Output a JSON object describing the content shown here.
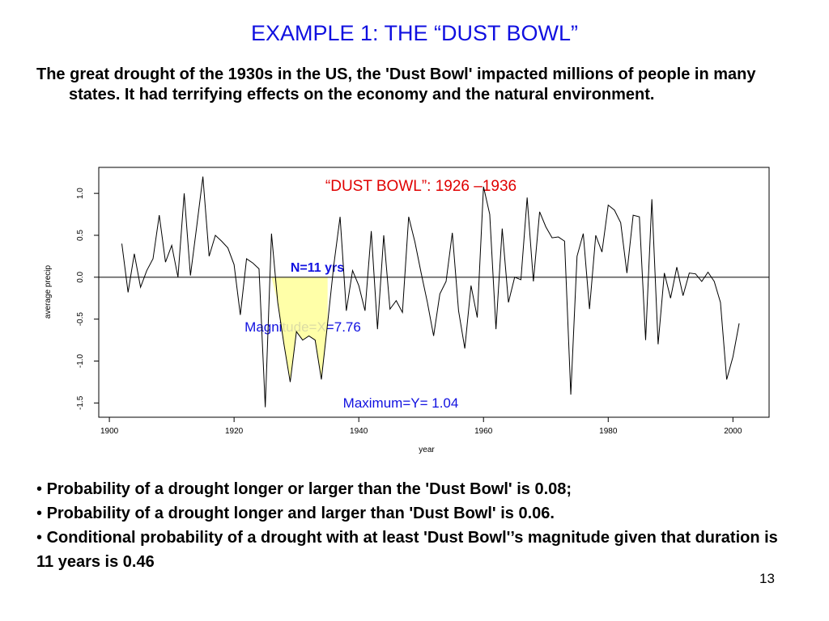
{
  "title": "EXAMPLE 1: THE “DUST BOWL”",
  "intro": "The great drought of the 1930s in the US, the 'Dust Bowl' impacted millions of people in many states. It had terrifying effects on the economy and the natural environment.",
  "bullets": [
    "Probability of a drought longer or larger than the 'Dust Bowl' is 0.08;",
    "Probability of a drought longer and larger than 'Dust Bowl' is  0.06.",
    "Conditional probability  of a drought with at least 'Dust Bowl'’s magnitude given that duration is 11 years is 0.46"
  ],
  "page_number": "13",
  "chart_data": {
    "type": "line",
    "title": "“DUST BOWL”: 1926 –1936",
    "xlabel": "year",
    "ylabel": "average precip",
    "color": "#000000",
    "annotations": [
      "N=11 yrs",
      "Magnitude=X=7.76",
      "Maximum=Y=  1.04"
    ],
    "x": [
      1902,
      1903,
      1904,
      1905,
      1906,
      1907,
      1908,
      1909,
      1910,
      1911,
      1912,
      1913,
      1914,
      1915,
      1916,
      1917,
      1918,
      1919,
      1920,
      1921,
      1922,
      1923,
      1924,
      1925,
      1926,
      1927,
      1928,
      1929,
      1930,
      1931,
      1932,
      1933,
      1934,
      1935,
      1936,
      1937,
      1938,
      1939,
      1940,
      1941,
      1942,
      1943,
      1944,
      1945,
      1946,
      1947,
      1948,
      1949,
      1950,
      1951,
      1952,
      1953,
      1954,
      1955,
      1956,
      1957,
      1958,
      1959,
      1960,
      1961,
      1962,
      1963,
      1964,
      1965,
      1966,
      1967,
      1968,
      1969,
      1970,
      1971,
      1972,
      1973,
      1974,
      1975,
      1976,
      1977,
      1978,
      1979,
      1980,
      1981,
      1982,
      1983,
      1984,
      1985,
      1986,
      1987,
      1988,
      1989,
      1990,
      1991,
      1992,
      1993,
      1994,
      1995,
      1996,
      1997,
      1998,
      1999,
      2000,
      2001
    ],
    "values": [
      0.4,
      -0.18,
      0.28,
      -0.12,
      0.08,
      0.22,
      0.74,
      0.18,
      0.38,
      0.0,
      1.0,
      0.02,
      0.6,
      1.2,
      0.25,
      0.5,
      0.43,
      0.35,
      0.15,
      -0.45,
      0.22,
      0.17,
      0.1,
      -1.55,
      0.52,
      -0.3,
      -0.8,
      -1.25,
      -0.65,
      -0.75,
      -0.7,
      -0.75,
      -1.22,
      -0.55,
      0.15,
      0.72,
      -0.4,
      0.08,
      -0.1,
      -0.4,
      0.55,
      -0.62,
      0.5,
      -0.38,
      -0.28,
      -0.42,
      0.72,
      0.42,
      0.05,
      -0.3,
      -0.7,
      -0.2,
      -0.05,
      0.53,
      -0.4,
      -0.85,
      -0.1,
      -0.48,
      1.08,
      0.75,
      -0.62,
      0.58,
      -0.3,
      0.0,
      -0.03,
      0.95,
      -0.05,
      0.78,
      0.6,
      0.47,
      0.48,
      0.43,
      -1.4,
      0.25,
      0.52,
      -0.38,
      0.5,
      0.3,
      0.86,
      0.8,
      0.65,
      0.05,
      0.74,
      0.72,
      -0.75,
      0.93,
      -0.8,
      0.05,
      -0.25,
      0.12,
      -0.22,
      0.05,
      0.04,
      -0.05,
      0.06,
      -0.05,
      -0.3,
      -1.22,
      -0.95,
      -0.55
    ],
    "xlim": [
      1898.3,
      2005.8
    ],
    "ylim": [
      -1.67,
      1.31
    ],
    "xticks": [
      1900,
      1920,
      1940,
      1960,
      1980,
      2000
    ],
    "yticks": [
      {
        "value": 1.0,
        "label": "1.0"
      },
      {
        "value": 0.5,
        "label": "0.5"
      },
      {
        "value": 0.0,
        "label": "0.0"
      },
      {
        "value": -0.5,
        "label": "-0.5"
      },
      {
        "value": -1.0,
        "label": "-1.0"
      },
      {
        "value": -1.5,
        "label": "-1.5"
      }
    ]
  }
}
